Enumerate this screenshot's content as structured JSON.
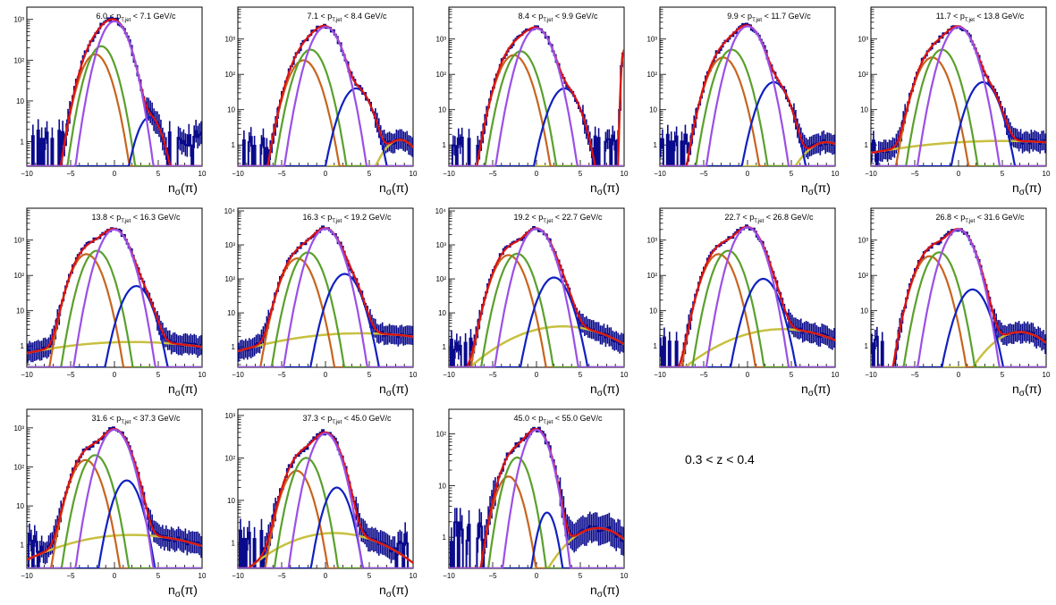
{
  "figure_note": "0.3 < z < 0.4",
  "colors": {
    "data": "#0a0a8c",
    "total_fit": "#dd1111",
    "pion": "#9b4fe6",
    "kaon": "#5aa02c",
    "proton": "#c8641e",
    "electron": "#1020c0",
    "background": "#c8c040"
  },
  "chart_data": [
    {
      "type": "line",
      "title": "6.0 < p_T,jet < 7.1 GeV/c",
      "title_parts": [
        "6.0 < p",
        "T,jet",
        "< 7.1 GeV/c"
      ],
      "xlabel": "nσ(π)",
      "xlim": [
        -10,
        10
      ],
      "ylim": [
        0.25,
        2000
      ],
      "ylog": true,
      "x_ticks": [
        "−10",
        "−5",
        "0",
        "5",
        "10"
      ],
      "y_ticks": [
        "1",
        "10",
        "10²",
        "10³"
      ],
      "components": {
        "pion": {
          "amp": 900,
          "mu": 0,
          "sigma": 1.1
        },
        "kaon": {
          "amp": 220,
          "mu": -1.5,
          "sigma": 1.05
        },
        "proton": {
          "amp": 140,
          "mu": -2.2,
          "sigma": 1.1
        },
        "electron": {
          "amp": 4,
          "mu": 4,
          "sigma": 1.0
        },
        "background": {
          "amp": 0,
          "mu": 0,
          "sigma": 1
        }
      }
    },
    {
      "type": "line",
      "title": "7.1 < p_T,jet < 8.4 GeV/c",
      "title_parts": [
        "7.1 < p",
        "T,jet",
        "< 8.4 GeV/c"
      ],
      "xlabel": "nσ(π)",
      "xlim": [
        -10,
        10
      ],
      "ylim": [
        0.25,
        8000
      ],
      "ylog": true,
      "x_ticks": [
        "−10",
        "−5",
        "0",
        "5",
        "10"
      ],
      "y_ticks": [
        "1",
        "10",
        "10²",
        "10³"
      ],
      "components": {
        "pion": {
          "amp": 2200,
          "mu": 0,
          "sigma": 1.1
        },
        "kaon": {
          "amp": 500,
          "mu": -1.7,
          "sigma": 1.05
        },
        "proton": {
          "amp": 250,
          "mu": -2.5,
          "sigma": 1.1
        },
        "electron": {
          "amp": 40,
          "mu": 3.5,
          "sigma": 1.1
        },
        "background": {
          "amp": 1.4,
          "mu": 8.5,
          "sigma": 1.5
        }
      }
    },
    {
      "type": "line",
      "title": "8.4 < p_T,jet < 9.9 GeV/c",
      "title_parts": [
        "8.4 < p",
        "T,jet",
        "< 9.9 GeV/c"
      ],
      "xlabel": "nσ(π)",
      "xlim": [
        -10,
        10
      ],
      "ylim": [
        0.25,
        8000
      ],
      "ylog": true,
      "x_ticks": [
        "−10",
        "−5",
        "0",
        "5",
        "10"
      ],
      "y_ticks": [
        "1",
        "10",
        "10²",
        "10³"
      ],
      "components": {
        "pion": {
          "amp": 2000,
          "mu": 0,
          "sigma": 1.1
        },
        "kaon": {
          "amp": 450,
          "mu": -1.8,
          "sigma": 1.05
        },
        "proton": {
          "amp": 350,
          "mu": -2.6,
          "sigma": 1.1
        },
        "electron": {
          "amp": 40,
          "mu": 3.2,
          "sigma": 1.1
        },
        "background": {
          "amp": 400,
          "mu": 9.9,
          "sigma": 0.15
        }
      }
    },
    {
      "type": "line",
      "title": "9.9 < p_T,jet < 11.7 GeV/c",
      "title_parts": [
        "9.9 < p",
        "T,jet",
        "< 11.7 GeV/c"
      ],
      "xlabel": "nσ(π)",
      "xlim": [
        -10,
        10
      ],
      "ylim": [
        0.25,
        8000
      ],
      "ylog": true,
      "x_ticks": [
        "−10",
        "−5",
        "0",
        "5",
        "10"
      ],
      "y_ticks": [
        "1",
        "10",
        "10²",
        "10³"
      ],
      "components": {
        "pion": {
          "amp": 2300,
          "mu": 0,
          "sigma": 1.1
        },
        "kaon": {
          "amp": 500,
          "mu": -1.8,
          "sigma": 1.05
        },
        "proton": {
          "amp": 300,
          "mu": -2.8,
          "sigma": 1.1
        },
        "electron": {
          "amp": 60,
          "mu": 3,
          "sigma": 1.1
        },
        "background": {
          "amp": 1.2,
          "mu": 9,
          "sigma": 2
        }
      }
    },
    {
      "type": "line",
      "title": "11.7 < p_T,jet < 13.8 GeV/c",
      "title_parts": [
        "11.7 < p",
        "T,jet",
        "< 13.8 GeV/c"
      ],
      "xlabel": "nσ(π)",
      "xlim": [
        -10,
        10
      ],
      "ylim": [
        0.25,
        8000
      ],
      "ylog": true,
      "x_ticks": [
        "−10",
        "−5",
        "0",
        "5",
        "10"
      ],
      "y_ticks": [
        "1",
        "10",
        "10²",
        "10³"
      ],
      "components": {
        "pion": {
          "amp": 2200,
          "mu": 0,
          "sigma": 1.1
        },
        "kaon": {
          "amp": 500,
          "mu": -1.9,
          "sigma": 1.05
        },
        "proton": {
          "amp": 300,
          "mu": -3,
          "sigma": 1.1
        },
        "electron": {
          "amp": 60,
          "mu": 2.8,
          "sigma": 1.1
        },
        "background": {
          "amp": 1.3,
          "mu": 5,
          "sigma": 12
        }
      }
    },
    {
      "type": "line",
      "title": "13.8 < p_T,jet < 16.3 GeV/c",
      "title_parts": [
        "13.8 < p",
        "T,jet",
        "< 16.3 GeV/c"
      ],
      "xlabel": "nσ(π)",
      "xlim": [
        -10,
        10
      ],
      "ylim": [
        0.25,
        8000
      ],
      "ylog": true,
      "x_ticks": [
        "−10",
        "−5",
        "0",
        "5",
        "10"
      ],
      "y_ticks": [
        "1",
        "10",
        "10²",
        "10³"
      ],
      "components": {
        "pion": {
          "amp": 2000,
          "mu": 0,
          "sigma": 1.1
        },
        "kaon": {
          "amp": 500,
          "mu": -2,
          "sigma": 1.05
        },
        "proton": {
          "amp": 400,
          "mu": -3.2,
          "sigma": 1.1
        },
        "electron": {
          "amp": 50,
          "mu": 2.5,
          "sigma": 1.1
        },
        "background": {
          "amp": 1.3,
          "mu": 2,
          "sigma": 10
        }
      }
    },
    {
      "type": "line",
      "title": "16.3 < p_T,jet < 19.2 GeV/c",
      "title_parts": [
        "16.3 < p",
        "T,jet",
        "< 19.2 GeV/c"
      ],
      "xlabel": "nσ(π)",
      "xlim": [
        -10,
        10
      ],
      "ylim": [
        0.25,
        12000
      ],
      "ylog": true,
      "x_ticks": [
        "−10",
        "−5",
        "0",
        "5",
        "10"
      ],
      "y_ticks": [
        "1",
        "10",
        "10²",
        "10³",
        "10⁴"
      ],
      "components": {
        "pion": {
          "amp": 3000,
          "mu": 0,
          "sigma": 1.1
        },
        "kaon": {
          "amp": 600,
          "mu": -2,
          "sigma": 1.05
        },
        "proton": {
          "amp": 400,
          "mu": -3.2,
          "sigma": 1.1
        },
        "electron": {
          "amp": 140,
          "mu": 2.2,
          "sigma": 1.1
        },
        "background": {
          "amp": 2.5,
          "mu": 4,
          "sigma": 9
        }
      }
    },
    {
      "type": "line",
      "title": "19.2 < p_T,jet < 22.7 GeV/c",
      "title_parts": [
        "19.2 < p",
        "T,jet",
        "< 22.7 GeV/c"
      ],
      "xlabel": "nσ(π)",
      "xlim": [
        -10,
        10
      ],
      "ylim": [
        0.25,
        12000
      ],
      "ylog": true,
      "x_ticks": [
        "−10",
        "−5",
        "0",
        "5",
        "10"
      ],
      "y_ticks": [
        "1",
        "10",
        "10²",
        "10³",
        "10⁴"
      ],
      "components": {
        "pion": {
          "amp": 3000,
          "mu": 0,
          "sigma": 1.1
        },
        "kaon": {
          "amp": 550,
          "mu": -2.2,
          "sigma": 1.05
        },
        "proton": {
          "amp": 500,
          "mu": -3.2,
          "sigma": 1.1
        },
        "electron": {
          "amp": 110,
          "mu": 2,
          "sigma": 1.1
        },
        "background": {
          "amp": 4,
          "mu": 3,
          "sigma": 4.5
        }
      }
    },
    {
      "type": "line",
      "title": "22.7 < p_T,jet < 26.8 GeV/c",
      "title_parts": [
        "22.7 < p",
        "T,jet",
        "< 26.8 GeV/c"
      ],
      "xlabel": "nσ(π)",
      "xlim": [
        -10,
        10
      ],
      "ylim": [
        0.25,
        8000
      ],
      "ylog": true,
      "x_ticks": [
        "−10",
        "−5",
        "0",
        "5",
        "10"
      ],
      "y_ticks": [
        "1",
        "10",
        "10²",
        "10³"
      ],
      "components": {
        "pion": {
          "amp": 2300,
          "mu": 0,
          "sigma": 1.1
        },
        "kaon": {
          "amp": 500,
          "mu": -2.2,
          "sigma": 1.05
        },
        "proton": {
          "amp": 400,
          "mu": -3.3,
          "sigma": 1.1
        },
        "electron": {
          "amp": 80,
          "mu": 1.8,
          "sigma": 1.1
        },
        "background": {
          "amp": 3,
          "mu": 4,
          "sigma": 5
        }
      }
    },
    {
      "type": "line",
      "title": "26.8 < p_T,jet < 31.6 GeV/c",
      "title_parts": [
        "26.8 < p",
        "T,jet",
        "< 31.6 GeV/c"
      ],
      "xlabel": "nσ(π)",
      "xlim": [
        -10,
        10
      ],
      "ylim": [
        0.25,
        8000
      ],
      "ylog": true,
      "x_ticks": [
        "−10",
        "−5",
        "0",
        "5",
        "10"
      ],
      "y_ticks": [
        "1",
        "10",
        "10²",
        "10³"
      ],
      "components": {
        "pion": {
          "amp": 2000,
          "mu": 0,
          "sigma": 1.1
        },
        "kaon": {
          "amp": 450,
          "mu": -2.2,
          "sigma": 1.05
        },
        "proton": {
          "amp": 350,
          "mu": -3.3,
          "sigma": 1.1
        },
        "electron": {
          "amp": 40,
          "mu": 1.6,
          "sigma": 1.1
        },
        "background": {
          "amp": 2.5,
          "mu": 7,
          "sigma": 2.5
        }
      }
    },
    {
      "type": "line",
      "title": "31.6 < p_T,jet < 37.3 GeV/c",
      "title_parts": [
        "31.6 < p",
        "T,jet",
        "< 37.3 GeV/c"
      ],
      "xlabel": "nσ(π)",
      "xlim": [
        -10,
        10
      ],
      "ylim": [
        0.25,
        3000
      ],
      "ylog": true,
      "x_ticks": [
        "−10",
        "−5",
        "0",
        "5",
        "10"
      ],
      "y_ticks": [
        "1",
        "10",
        "10²",
        "10³"
      ],
      "components": {
        "pion": {
          "amp": 900,
          "mu": 0,
          "sigma": 1.1
        },
        "kaon": {
          "amp": 200,
          "mu": -2.2,
          "sigma": 1.05
        },
        "proton": {
          "amp": 150,
          "mu": -3.3,
          "sigma": 1.1
        },
        "electron": {
          "amp": 45,
          "mu": 1.4,
          "sigma": 1.0
        },
        "background": {
          "amp": 1.8,
          "mu": 2,
          "sigma": 7
        }
      }
    },
    {
      "type": "line",
      "title": "37.3 < p_T,jet < 45.0 GeV/c",
      "title_parts": [
        "37.3 < p",
        "T,jet",
        "< 45.0 GeV/c"
      ],
      "xlabel": "nσ(π)",
      "xlim": [
        -10,
        10
      ],
      "ylim": [
        0.25,
        1400
      ],
      "ylog": true,
      "x_ticks": [
        "−10",
        "−5",
        "0",
        "5",
        "10"
      ],
      "y_ticks": [
        "1",
        "10",
        "10²",
        "10³"
      ],
      "components": {
        "pion": {
          "amp": 380,
          "mu": 0,
          "sigma": 1.1
        },
        "kaon": {
          "amp": 100,
          "mu": -2.2,
          "sigma": 1.05
        },
        "proton": {
          "amp": 50,
          "mu": -3.3,
          "sigma": 1.1
        },
        "electron": {
          "amp": 20,
          "mu": 1.3,
          "sigma": 1.0
        },
        "background": {
          "amp": 1.7,
          "mu": 1,
          "sigma": 5
        }
      }
    },
    {
      "type": "line",
      "title": "45.0 < p_T,jet < 55.0 GeV/c",
      "title_parts": [
        "45.0 < p",
        "T,jet",
        "< 55.0 GeV/c"
      ],
      "xlabel": "nσ(π)",
      "xlim": [
        -10,
        10
      ],
      "ylim": [
        0.25,
        300
      ],
      "ylog": true,
      "x_ticks": [
        "−10",
        "−5",
        "0",
        "5",
        "10"
      ],
      "y_ticks": [
        "1",
        "10",
        "10²"
      ],
      "components": {
        "pion": {
          "amp": 120,
          "mu": 0,
          "sigma": 1.1
        },
        "kaon": {
          "amp": 35,
          "mu": -2.2,
          "sigma": 1.05
        },
        "proton": {
          "amp": 15,
          "mu": -3.2,
          "sigma": 1.1
        },
        "electron": {
          "amp": 3,
          "mu": 1.2,
          "sigma": 0.8
        },
        "background": {
          "amp": 1.5,
          "mu": 7,
          "sigma": 3
        }
      }
    }
  ]
}
